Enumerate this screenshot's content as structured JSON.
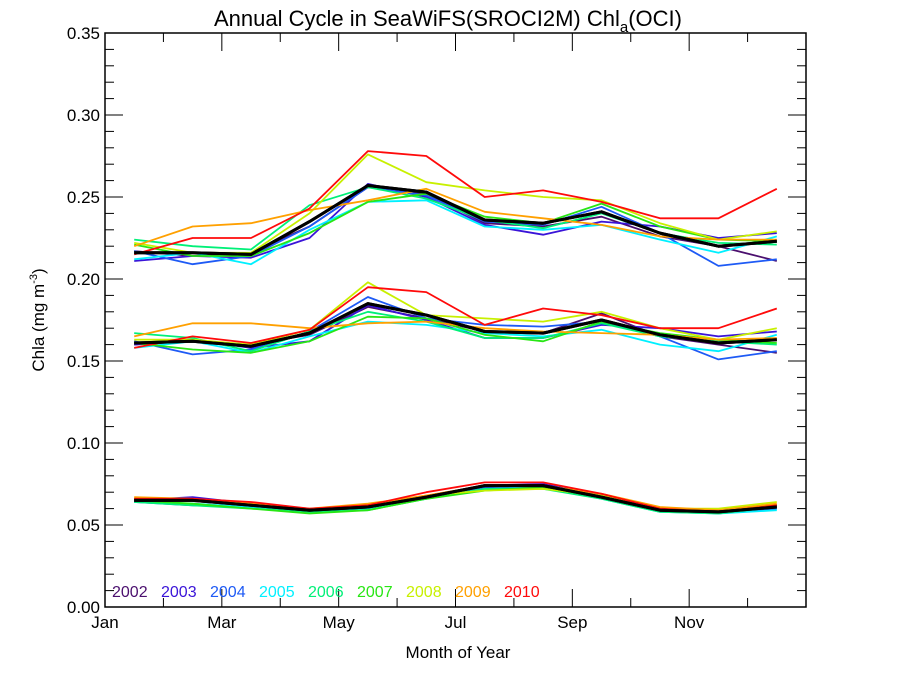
{
  "chart_data": {
    "type": "line",
    "title": "Annual Cycle in SeaWiFS(SROCI2M) Chl",
    "title_subscript": "a",
    "title_suffix": "(OCI)",
    "xlabel": "Month of Year",
    "ylabel": "Chla (mg m",
    "ylabel_superscript": "-3",
    "ylabel_suffix": ")",
    "xlim": [
      0,
      12
    ],
    "ylim": [
      0.0,
      0.35
    ],
    "yticks": [
      0.0,
      0.05,
      0.1,
      0.15,
      0.2,
      0.25,
      0.3,
      0.35
    ],
    "ytick_labels": [
      "0.00",
      "0.05",
      "0.10",
      "0.15",
      "0.20",
      "0.25",
      "0.30",
      "0.35"
    ],
    "xtick_labels": [
      "Jan",
      "Mar",
      "May",
      "Jul",
      "Sep",
      "Nov"
    ],
    "xtick_positions": [
      0,
      2,
      4,
      6,
      8,
      10
    ],
    "x": [
      0.5,
      1.5,
      2.5,
      3.5,
      4.5,
      5.5,
      6.5,
      7.5,
      8.5,
      9.5,
      10.5,
      11.5
    ],
    "grid": false,
    "legend_placement": "bottom-left",
    "series_groups": [
      {
        "name": "upper",
        "series": [
          {
            "name": "2002",
            "color": "#4b0f6e",
            "values": [
              0.217,
              0.214,
              0.216,
              0.232,
              0.256,
              0.252,
              0.234,
              0.232,
              0.238,
              0.226,
              0.22,
              0.211
            ]
          },
          {
            "name": "2003",
            "color": "#3a14d8",
            "values": [
              0.211,
              0.214,
              0.213,
              0.225,
              0.258,
              0.25,
              0.233,
              0.227,
              0.235,
              0.232,
              0.225,
              0.228
            ]
          },
          {
            "name": "2004",
            "color": "#1e5af5",
            "values": [
              0.217,
              0.209,
              0.214,
              0.232,
              0.256,
              0.251,
              0.235,
              0.233,
              0.244,
              0.228,
              0.208,
              0.212
            ]
          },
          {
            "name": "2005",
            "color": "#00f0ff",
            "values": [
              0.212,
              0.216,
              0.209,
              0.23,
              0.247,
              0.248,
              0.232,
              0.23,
              0.233,
              0.224,
              0.216,
              0.226
            ]
          },
          {
            "name": "2006",
            "color": "#00f078",
            "values": [
              0.224,
              0.22,
              0.218,
              0.245,
              0.256,
              0.249,
              0.236,
              0.231,
              0.24,
              0.228,
              0.222,
              0.221
            ]
          },
          {
            "name": "2007",
            "color": "#28e614",
            "values": [
              0.221,
              0.214,
              0.214,
              0.228,
              0.247,
              0.252,
              0.238,
              0.234,
              0.246,
              0.232,
              0.224,
              0.223
            ]
          },
          {
            "name": "2008",
            "color": "#c8f000",
            "values": [
              0.222,
              0.216,
              0.216,
              0.24,
              0.276,
              0.259,
              0.254,
              0.25,
              0.248,
              0.234,
              0.224,
              0.229
            ]
          },
          {
            "name": "2009",
            "color": "#ffa000",
            "values": [
              0.22,
              0.232,
              0.234,
              0.242,
              0.248,
              0.255,
              0.241,
              0.237,
              0.233,
              0.226,
              0.224,
              0.224
            ]
          },
          {
            "name": "2010",
            "color": "#ff0a0a",
            "values": [
              0.215,
              0.225,
              0.225,
              0.243,
              0.278,
              0.275,
              0.25,
              0.254,
              0.247,
              0.237,
              0.237,
              0.255
            ]
          },
          {
            "name": "mean",
            "color": "#000000",
            "values": [
              0.216,
              0.216,
              0.215,
              0.235,
              0.257,
              0.253,
              0.236,
              0.234,
              0.241,
              0.228,
              0.22,
              0.223
            ]
          }
        ]
      },
      {
        "name": "middle",
        "series": [
          {
            "name": "2002",
            "color": "#4b0f6e",
            "values": [
              0.16,
              0.162,
              0.16,
              0.166,
              0.183,
              0.176,
              0.168,
              0.167,
              0.179,
              0.165,
              0.16,
              0.155
            ]
          },
          {
            "name": "2003",
            "color": "#3a14d8",
            "values": [
              0.16,
              0.163,
              0.158,
              0.162,
              0.184,
              0.175,
              0.164,
              0.164,
              0.172,
              0.17,
              0.165,
              0.168
            ]
          },
          {
            "name": "2004",
            "color": "#1e5af5",
            "values": [
              0.162,
              0.154,
              0.157,
              0.168,
              0.189,
              0.176,
              0.172,
              0.171,
              0.174,
              0.165,
              0.151,
              0.156
            ]
          },
          {
            "name": "2005",
            "color": "#00f0ff",
            "values": [
              0.158,
              0.162,
              0.155,
              0.165,
              0.174,
              0.172,
              0.167,
              0.165,
              0.169,
              0.16,
              0.156,
              0.166
            ]
          },
          {
            "name": "2006",
            "color": "#00f078",
            "values": [
              0.167,
              0.164,
              0.156,
              0.168,
              0.18,
              0.174,
              0.164,
              0.164,
              0.173,
              0.165,
              0.162,
              0.16
            ]
          },
          {
            "name": "2007",
            "color": "#28e614",
            "values": [
              0.161,
              0.157,
              0.155,
              0.162,
              0.177,
              0.176,
              0.166,
              0.162,
              0.174,
              0.167,
              0.163,
              0.161
            ]
          },
          {
            "name": "2008",
            "color": "#c8f000",
            "values": [
              0.163,
              0.163,
              0.16,
              0.169,
              0.198,
              0.178,
              0.176,
              0.174,
              0.18,
              0.17,
              0.163,
              0.17
            ]
          },
          {
            "name": "2009",
            "color": "#ffa000",
            "values": [
              0.165,
              0.173,
              0.173,
              0.17,
              0.173,
              0.174,
              0.17,
              0.168,
              0.167,
              0.166,
              0.163,
              0.164
            ]
          },
          {
            "name": "2010",
            "color": "#ff0a0a",
            "values": [
              0.158,
              0.165,
              0.161,
              0.169,
              0.195,
              0.192,
              0.172,
              0.182,
              0.178,
              0.17,
              0.17,
              0.182
            ]
          },
          {
            "name": "mean",
            "color": "#000000",
            "values": [
              0.161,
              0.162,
              0.159,
              0.167,
              0.185,
              0.178,
              0.168,
              0.167,
              0.175,
              0.166,
              0.161,
              0.163
            ]
          }
        ]
      },
      {
        "name": "lower",
        "series": [
          {
            "name": "2002",
            "color": "#4b0f6e",
            "values": [
              0.066,
              0.066,
              0.062,
              0.059,
              0.06,
              0.067,
              0.074,
              0.074,
              0.067,
              0.059,
              0.058,
              0.062
            ]
          },
          {
            "name": "2003",
            "color": "#3a14d8",
            "values": [
              0.065,
              0.067,
              0.063,
              0.059,
              0.061,
              0.067,
              0.074,
              0.075,
              0.068,
              0.059,
              0.058,
              0.062
            ]
          },
          {
            "name": "2004",
            "color": "#1e5af5",
            "values": [
              0.064,
              0.062,
              0.061,
              0.058,
              0.06,
              0.067,
              0.073,
              0.074,
              0.067,
              0.059,
              0.057,
              0.06
            ]
          },
          {
            "name": "2005",
            "color": "#00f0ff",
            "values": [
              0.064,
              0.063,
              0.061,
              0.058,
              0.06,
              0.066,
              0.072,
              0.073,
              0.066,
              0.058,
              0.057,
              0.059
            ]
          },
          {
            "name": "2006",
            "color": "#00f078",
            "values": [
              0.064,
              0.062,
              0.06,
              0.058,
              0.059,
              0.066,
              0.072,
              0.072,
              0.066,
              0.058,
              0.057,
              0.061
            ]
          },
          {
            "name": "2007",
            "color": "#28e614",
            "values": [
              0.065,
              0.063,
              0.06,
              0.057,
              0.059,
              0.066,
              0.071,
              0.073,
              0.067,
              0.059,
              0.058,
              0.062
            ]
          },
          {
            "name": "2008",
            "color": "#c8f000",
            "values": [
              0.066,
              0.065,
              0.062,
              0.059,
              0.062,
              0.068,
              0.071,
              0.072,
              0.068,
              0.06,
              0.06,
              0.064
            ]
          },
          {
            "name": "2009",
            "color": "#ffa000",
            "values": [
              0.067,
              0.066,
              0.063,
              0.06,
              0.063,
              0.068,
              0.074,
              0.074,
              0.069,
              0.061,
              0.059,
              0.063
            ]
          },
          {
            "name": "2010",
            "color": "#ff0a0a",
            "values": [
              0.066,
              0.066,
              0.064,
              0.06,
              0.062,
              0.07,
              0.076,
              0.076,
              0.069,
              0.06,
              0.058,
              0.062
            ]
          },
          {
            "name": "mean",
            "color": "#000000",
            "values": [
              0.065,
              0.065,
              0.062,
              0.059,
              0.061,
              0.067,
              0.074,
              0.074,
              0.067,
              0.059,
              0.058,
              0.061
            ]
          }
        ]
      }
    ],
    "legend": [
      {
        "label": "2002",
        "color": "#4b0f6e"
      },
      {
        "label": "2003",
        "color": "#3a14d8"
      },
      {
        "label": "2004",
        "color": "#1e5af5"
      },
      {
        "label": "2005",
        "color": "#00f0ff"
      },
      {
        "label": "2006",
        "color": "#00f078"
      },
      {
        "label": "2007",
        "color": "#28e614"
      },
      {
        "label": "2008",
        "color": "#c8f000"
      },
      {
        "label": "2009",
        "color": "#ffa000"
      },
      {
        "label": "2010",
        "color": "#ff0a0a"
      }
    ]
  }
}
